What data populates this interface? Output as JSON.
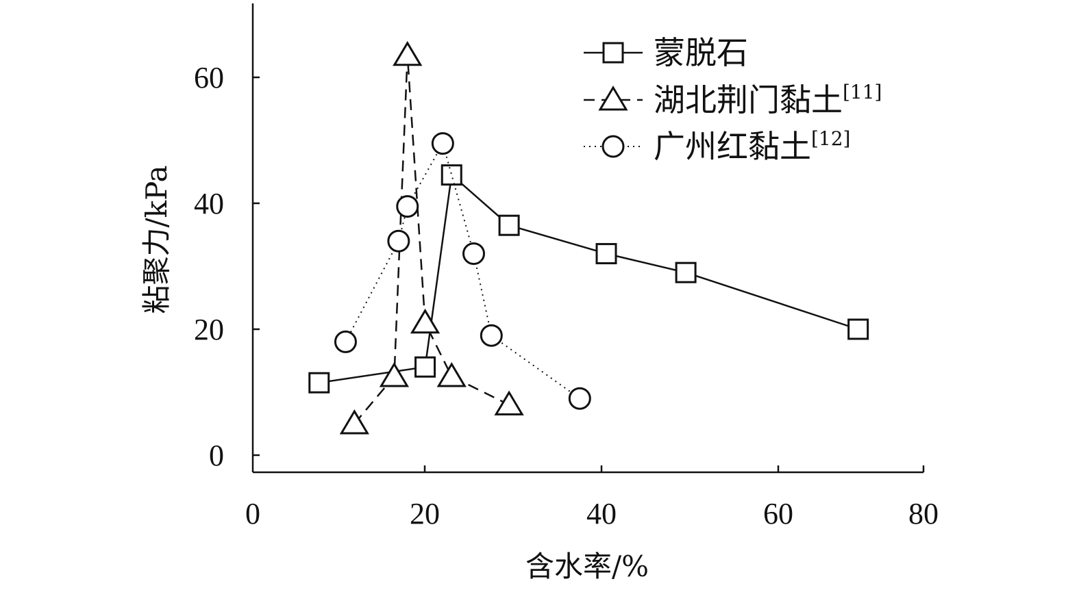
{
  "chart_data": {
    "type": "line",
    "title": "",
    "xlabel": "含水率/%",
    "ylabel": "粘聚力/kPa",
    "xlim": [
      0,
      80
    ],
    "ylim": [
      0,
      70
    ],
    "xticks": [
      "0",
      "20",
      "40",
      "60",
      "80"
    ],
    "yticks": [
      "0",
      "20",
      "40",
      "60"
    ],
    "grid": false,
    "legend_position": "top-right",
    "series": [
      {
        "name": "蒙脱石",
        "legend_sup": "",
        "marker": "square",
        "line_style": "solid",
        "x": [
          7.5,
          19.5,
          22.5,
          29,
          40,
          49,
          68.5
        ],
        "y": [
          11.5,
          14,
          44.5,
          36.5,
          32,
          29,
          20
        ]
      },
      {
        "name": "湖北荆门黏土",
        "legend_sup": "[11]",
        "marker": "triangle",
        "line_style": "dashed",
        "x": [
          11.5,
          16,
          17.5,
          19.5,
          22.5,
          29
        ],
        "y": [
          5,
          12.5,
          63.5,
          21,
          12.5,
          8
        ]
      },
      {
        "name": "广州红黏土",
        "legend_sup": "[12]",
        "marker": "circle",
        "line_style": "dotted",
        "x": [
          10.5,
          16.5,
          17.5,
          21.5,
          25,
          27,
          37
        ],
        "y": [
          18,
          34,
          39.5,
          49.5,
          32,
          19,
          9
        ]
      }
    ]
  }
}
